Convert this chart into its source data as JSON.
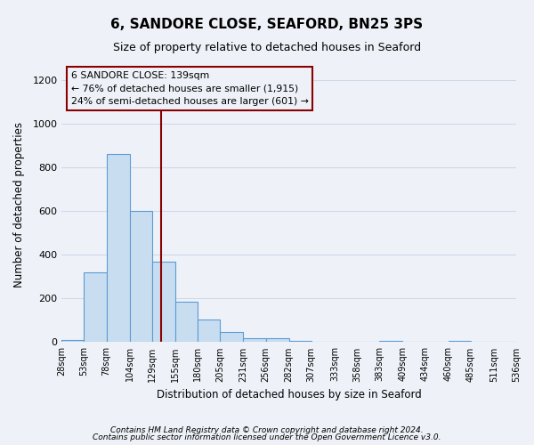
{
  "title": "6, SANDORE CLOSE, SEAFORD, BN25 3PS",
  "subtitle": "Size of property relative to detached houses in Seaford",
  "xlabel": "Distribution of detached houses by size in Seaford",
  "ylabel": "Number of detached properties",
  "bar_edges": [
    28,
    53,
    78,
    104,
    129,
    155,
    180,
    205,
    231,
    256,
    282,
    307,
    333,
    358,
    383,
    409,
    434,
    460,
    485,
    511,
    536
  ],
  "bar_heights": [
    10,
    320,
    860,
    600,
    370,
    185,
    105,
    47,
    20,
    20,
    5,
    0,
    0,
    0,
    5,
    0,
    0,
    5,
    0,
    0
  ],
  "bar_color": "#c9ddf0",
  "bar_edge_color": "#5b9bd5",
  "vline_x": 139,
  "vline_color": "#8b0000",
  "ylim": [
    0,
    1260
  ],
  "annotation_line1": "6 SANDORE CLOSE: 139sqm",
  "annotation_line2": "← 76% of detached houses are smaller (1,915)",
  "annotation_line3": "24% of semi-detached houses are larger (601) →",
  "annotation_box_color": "#8b0000",
  "yticks": [
    0,
    200,
    400,
    600,
    800,
    1000,
    1200
  ],
  "footnote1": "Contains HM Land Registry data © Crown copyright and database right 2024.",
  "footnote2": "Contains public sector information licensed under the Open Government Licence v3.0.",
  "background_color": "#eef2f8",
  "grid_color": "#d0d8e8"
}
